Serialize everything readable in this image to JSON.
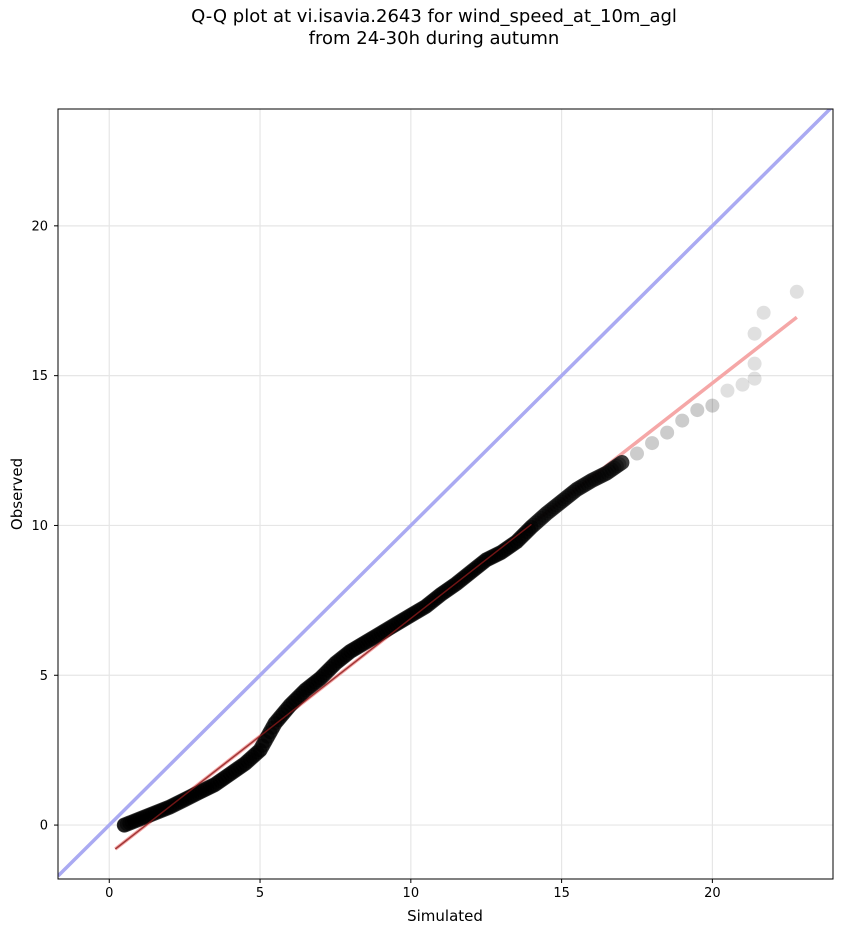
{
  "chart_data": {
    "type": "scatter",
    "title_line1": "Q-Q plot at vi.isavia.2643 for wind_speed_at_10m_agl",
    "title_line2": "from 24-30h during autumn",
    "xlabel": "Simulated",
    "ylabel": "Observed",
    "xlim": [
      -1.7,
      24
    ],
    "ylim": [
      -1.8,
      23.9
    ],
    "xticks": [
      0,
      5,
      10,
      15,
      20
    ],
    "yticks": [
      0,
      5,
      10,
      15,
      20
    ],
    "grid": true,
    "colors": {
      "points": "#000000",
      "identity_line": "#aaaaf2",
      "fit_line": "#f5a7a7",
      "dense_line": "#8b1a1a"
    },
    "series": [
      {
        "kind": "quantile-points",
        "points": [
          [
            0.5,
            0.0
          ],
          [
            1.0,
            0.2
          ],
          [
            1.5,
            0.4
          ],
          [
            2.0,
            0.6
          ],
          [
            2.5,
            0.85
          ],
          [
            3.0,
            1.1
          ],
          [
            3.5,
            1.35
          ],
          [
            4.0,
            1.7
          ],
          [
            4.5,
            2.05
          ],
          [
            5.0,
            2.5
          ],
          [
            5.5,
            3.4
          ],
          [
            6.0,
            4.0
          ],
          [
            6.5,
            4.5
          ],
          [
            7.0,
            4.9
          ],
          [
            7.5,
            5.4
          ],
          [
            8.0,
            5.8
          ],
          [
            8.5,
            6.1
          ],
          [
            9.0,
            6.4
          ],
          [
            9.5,
            6.7
          ],
          [
            10.0,
            7.0
          ],
          [
            10.5,
            7.3
          ],
          [
            11.0,
            7.7
          ],
          [
            11.5,
            8.05
          ],
          [
            12.0,
            8.45
          ],
          [
            12.5,
            8.85
          ],
          [
            13.0,
            9.1
          ],
          [
            13.5,
            9.45
          ],
          [
            14.0,
            9.95
          ],
          [
            14.5,
            10.4
          ],
          [
            15.0,
            10.8
          ],
          [
            15.5,
            11.2
          ],
          [
            16.0,
            11.5
          ],
          [
            16.5,
            11.75
          ],
          [
            17.0,
            12.1
          ],
          [
            17.5,
            12.4
          ],
          [
            18.0,
            12.75
          ],
          [
            18.5,
            13.1
          ],
          [
            19.0,
            13.5
          ],
          [
            19.5,
            13.85
          ],
          [
            20.0,
            14.0
          ],
          [
            20.5,
            14.5
          ],
          [
            21.0,
            14.7
          ],
          [
            21.4,
            14.9
          ],
          [
            21.4,
            15.4
          ],
          [
            21.4,
            16.4
          ],
          [
            21.7,
            17.1
          ],
          [
            22.8,
            17.8
          ]
        ]
      },
      {
        "kind": "identity-line",
        "from": [
          -1.7,
          -1.7
        ],
        "to": [
          24,
          24
        ]
      },
      {
        "kind": "fit-line",
        "from": [
          0.2,
          -0.8
        ],
        "to": [
          22.8,
          16.95
        ]
      }
    ]
  }
}
